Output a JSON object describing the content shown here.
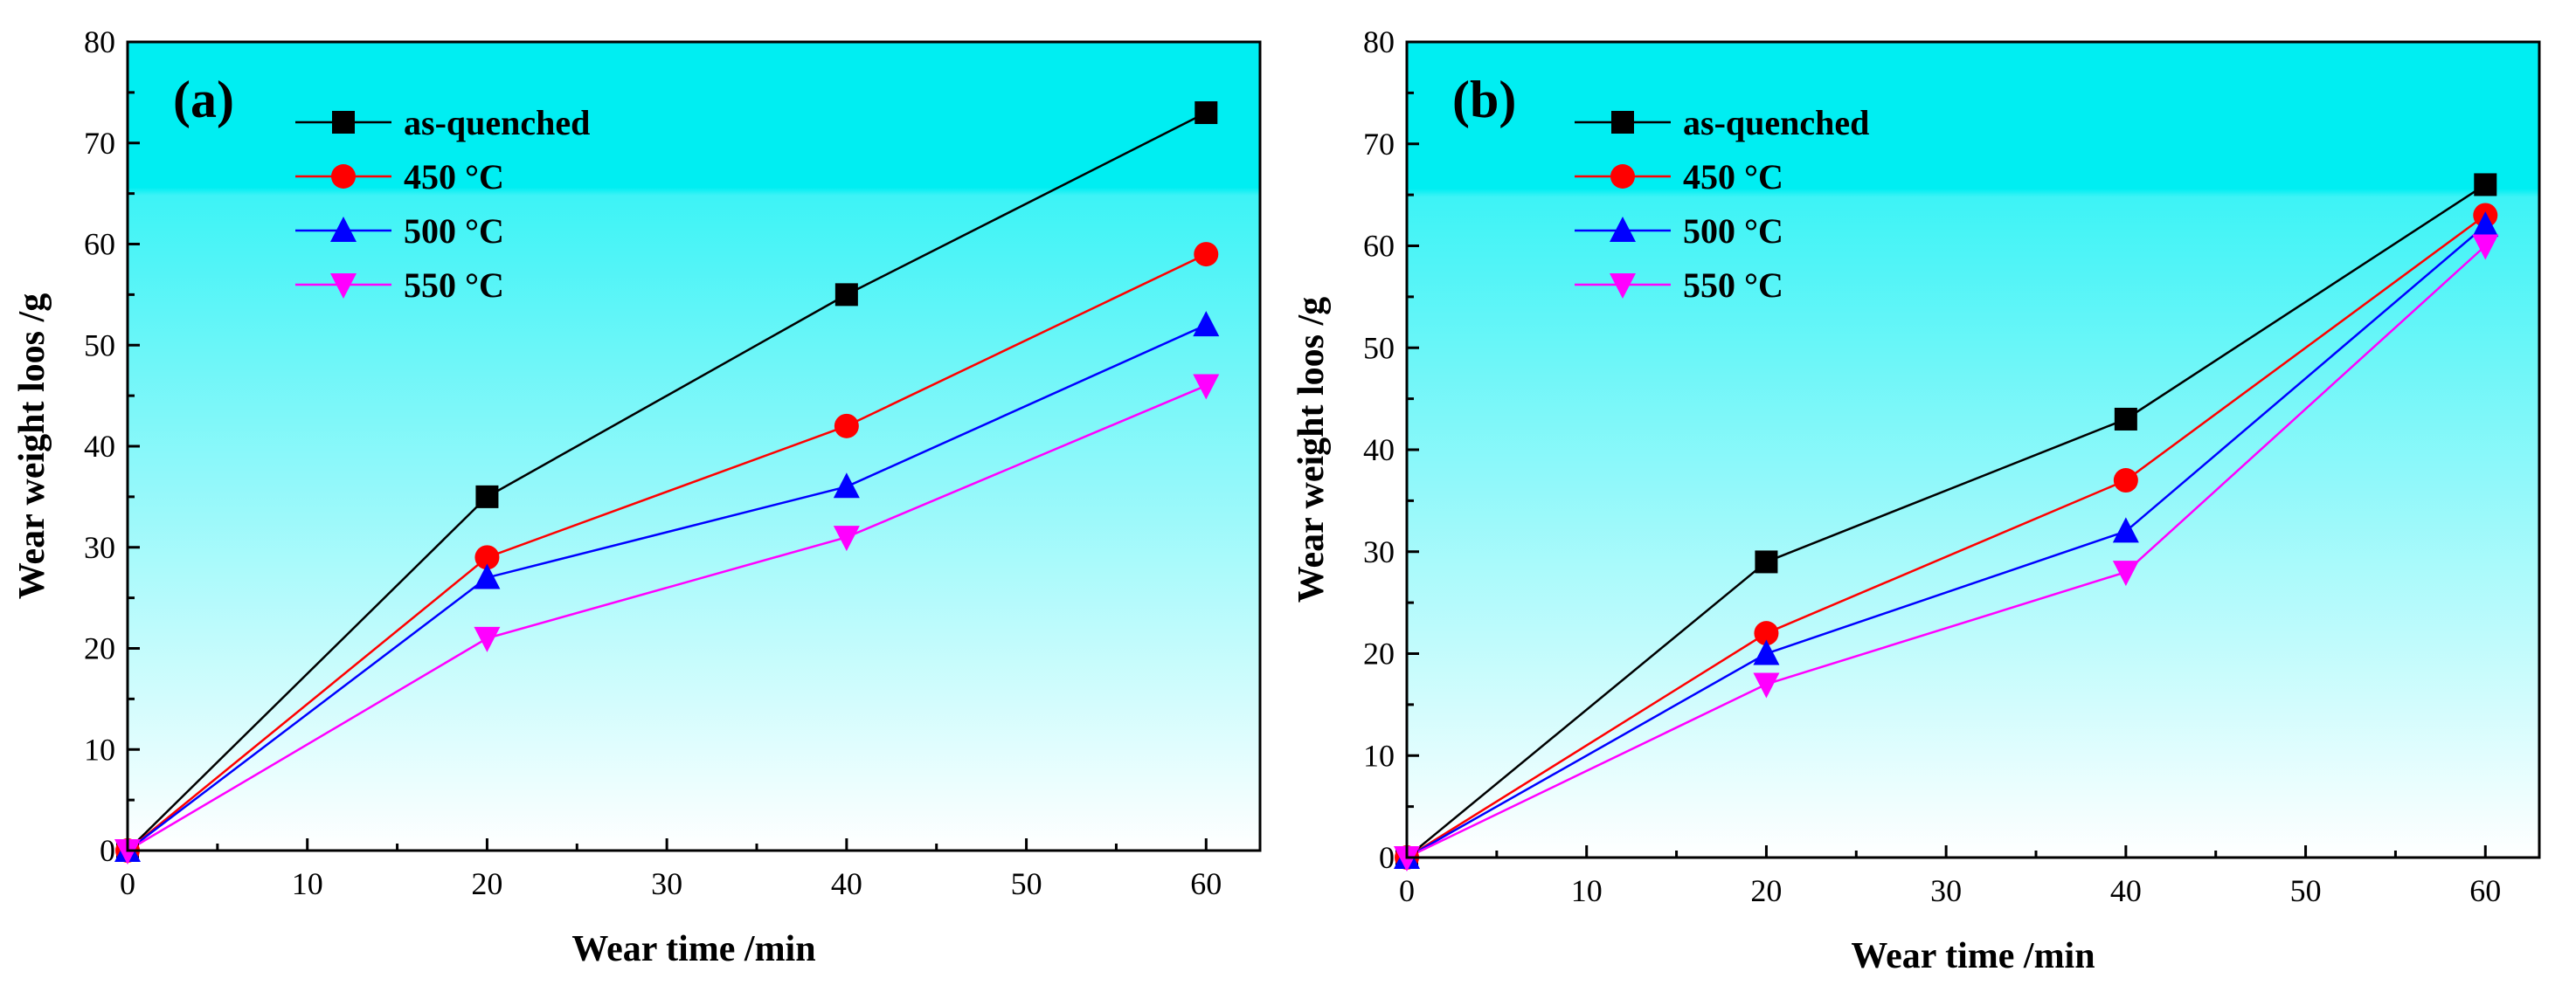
{
  "chart_data": [
    {
      "type": "line",
      "panel_label": "(a)",
      "xlabel": "Wear time /min",
      "ylabel": "Wear weight loos /g",
      "xlim": [
        0,
        63
      ],
      "ylim": [
        0,
        80
      ],
      "xticks": [
        0,
        10,
        20,
        30,
        40,
        50,
        60
      ],
      "yticks": [
        0,
        10,
        20,
        30,
        40,
        50,
        60,
        70,
        80
      ],
      "x": [
        0,
        20,
        40,
        60
      ],
      "legend_position": "top-left",
      "series": [
        {
          "name": "as-quenched",
          "color": "#000000",
          "marker": "square",
          "values": [
            0,
            35,
            55,
            73
          ]
        },
        {
          "name": "450 °C",
          "color": "#ff0000",
          "marker": "circle",
          "values": [
            0,
            29,
            42,
            59
          ]
        },
        {
          "name": "500 °C",
          "color": "#0000ff",
          "marker": "triangle-up",
          "values": [
            0,
            27,
            36,
            52
          ]
        },
        {
          "name": "550 °C",
          "color": "#ff00ff",
          "marker": "triangle-down",
          "values": [
            0,
            21,
            31,
            46
          ]
        }
      ]
    },
    {
      "type": "line",
      "panel_label": "(b)",
      "xlabel": "Wear time /min",
      "ylabel": "Wear weight loos /g",
      "xlim": [
        0,
        63
      ],
      "ylim": [
        0,
        80
      ],
      "xticks": [
        0,
        10,
        20,
        30,
        40,
        50,
        60
      ],
      "yticks": [
        0,
        10,
        20,
        30,
        40,
        50,
        60,
        70,
        80
      ],
      "x": [
        0,
        20,
        40,
        60
      ],
      "legend_position": "top-left",
      "series": [
        {
          "name": "as-quenched",
          "color": "#000000",
          "marker": "square",
          "values": [
            0,
            29,
            43,
            66
          ]
        },
        {
          "name": "450 °C",
          "color": "#ff0000",
          "marker": "circle",
          "values": [
            0,
            22,
            37,
            63
          ]
        },
        {
          "name": "500 °C",
          "color": "#0000ff",
          "marker": "triangle-up",
          "values": [
            0,
            20,
            32,
            62
          ]
        },
        {
          "name": "550 °C",
          "color": "#ff00ff",
          "marker": "triangle-down",
          "values": [
            0,
            17,
            28,
            60
          ]
        }
      ]
    }
  ],
  "colors": {
    "background_top": "#00eef2",
    "background_bottom": "#ffffff",
    "axis": "#000000"
  }
}
